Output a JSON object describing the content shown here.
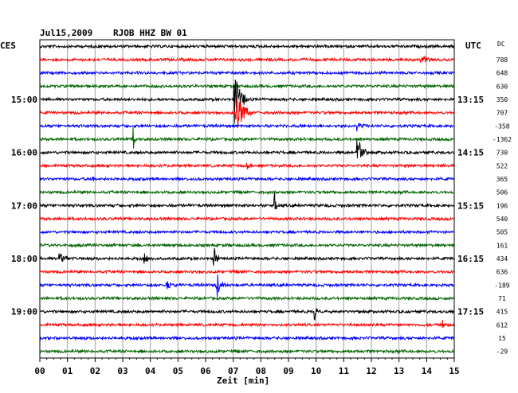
{
  "header": {
    "date": "Jul15,2009",
    "station": "RJOB HHZ BW 01",
    "left_timezone": "CES",
    "right_timezone": "UTC",
    "dc_label": "DC"
  },
  "chart_data": {
    "type": "line",
    "xlabel": "Zeit [min]",
    "xlim": [
      0,
      15
    ],
    "x_ticks": [
      "00",
      "01",
      "02",
      "03",
      "04",
      "05",
      "06",
      "07",
      "08",
      "09",
      "10",
      "11",
      "12",
      "13",
      "14",
      "15"
    ],
    "left_time_labels": [
      {
        "trace": 4,
        "label": "15:00"
      },
      {
        "trace": 8,
        "label": "16:00"
      },
      {
        "trace": 12,
        "label": "17:00"
      },
      {
        "trace": 16,
        "label": "18:00"
      },
      {
        "trace": 20,
        "label": "19:00"
      }
    ],
    "right_time_labels": [
      {
        "trace": 4,
        "label": "13:15"
      },
      {
        "trace": 8,
        "label": "14:15"
      },
      {
        "trace": 12,
        "label": "15:15"
      },
      {
        "trace": 16,
        "label": "16:15"
      },
      {
        "trace": 20,
        "label": "17:15"
      }
    ],
    "dc_offsets": [
      "788",
      "648",
      "630",
      "350",
      "707",
      "-358",
      "-1362",
      "730",
      "522",
      "365",
      "506",
      "196",
      "540",
      "505",
      "161",
      "434",
      "636",
      "-189",
      "71",
      "415",
      "612",
      "15",
      "-29"
    ],
    "trace_colors": [
      "#000000",
      "#ff0000",
      "#0000ff",
      "#006400"
    ],
    "events": [
      {
        "trace": 1,
        "minute": 13.8,
        "amp": 0.35,
        "dur": 0.7
      },
      {
        "trace": 4,
        "minute": 7.05,
        "amp": 2.2,
        "dur": 0.5
      },
      {
        "trace": 5,
        "minute": 7.1,
        "amp": 1.8,
        "dur": 0.6
      },
      {
        "trace": 6,
        "minute": 11.5,
        "amp": 0.5,
        "dur": 0.3
      },
      {
        "trace": 8,
        "minute": 11.5,
        "amp": 1.6,
        "dur": 0.4
      },
      {
        "trace": 7,
        "minute": 3.4,
        "amp": 0.9,
        "dur": 0.1
      },
      {
        "trace": 9,
        "minute": 7.5,
        "amp": 0.3,
        "dur": 0.4
      },
      {
        "trace": 10,
        "minute": 1.9,
        "amp": 0.5,
        "dur": 0.1
      },
      {
        "trace": 12,
        "minute": 8.5,
        "amp": 1.0,
        "dur": 0.1
      },
      {
        "trace": 16,
        "minute": 0.7,
        "amp": 0.45,
        "dur": 0.6
      },
      {
        "trace": 16,
        "minute": 3.8,
        "amp": 0.4,
        "dur": 0.3
      },
      {
        "trace": 16,
        "minute": 6.3,
        "amp": 1.0,
        "dur": 0.2
      },
      {
        "trace": 18,
        "minute": 4.6,
        "amp": 0.35,
        "dur": 0.4
      },
      {
        "trace": 18,
        "minute": 6.4,
        "amp": 1.2,
        "dur": 0.3
      },
      {
        "trace": 20,
        "minute": 9.95,
        "amp": 0.9,
        "dur": 0.1
      },
      {
        "trace": 21,
        "minute": 14.6,
        "amp": 0.4,
        "dur": 0.1
      }
    ]
  }
}
